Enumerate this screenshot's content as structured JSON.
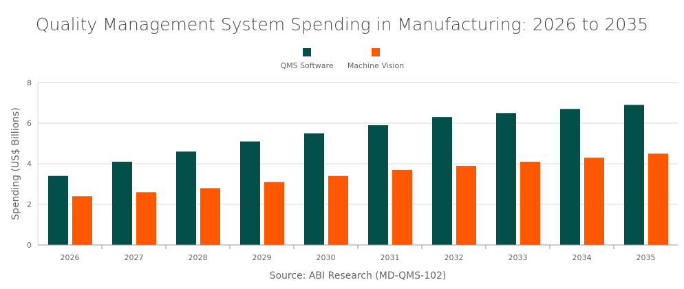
{
  "chart_data": {
    "type": "bar",
    "title": "Quality Management System Spending in Manufacturing: 2026 to 2035",
    "xlabel": "",
    "ylabel": "Spending (US$ Billions)",
    "source": "Source: ABI Research (MD-QMS-102)",
    "categories": [
      "2026",
      "2027",
      "2028",
      "2029",
      "2030",
      "2031",
      "2032",
      "2033",
      "2034",
      "2035"
    ],
    "series": [
      {
        "name": "QMS Software",
        "color": "#03504a",
        "values": [
          3.4,
          4.1,
          4.6,
          5.1,
          5.5,
          5.9,
          6.3,
          6.5,
          6.7,
          6.9
        ]
      },
      {
        "name": "Machine Vision",
        "color": "#ff5800",
        "values": [
          2.4,
          2.6,
          2.8,
          3.1,
          3.4,
          3.7,
          3.9,
          4.1,
          4.3,
          4.5
        ]
      }
    ],
    "ylim": [
      0,
      8
    ],
    "yticks": [
      0,
      2,
      4,
      6,
      8
    ],
    "grid": true,
    "legend": "top"
  }
}
